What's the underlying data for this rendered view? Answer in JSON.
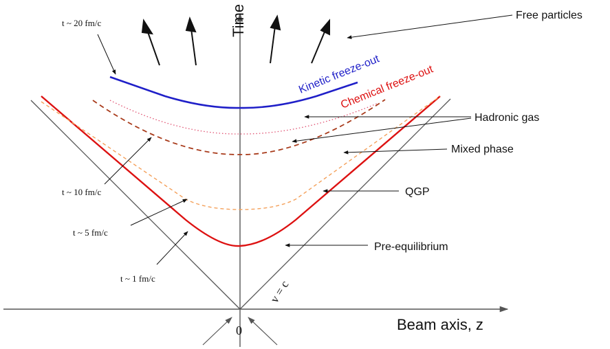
{
  "axes": {
    "time_label": "Time",
    "beam_label": "Beam axis, z",
    "origin_label": "0",
    "light_cone_label": "v = c"
  },
  "curves": {
    "kinetic_label": "Kinetic freeze-out",
    "chemical_label": "Chemical freeze-out"
  },
  "annotations": {
    "free_particles": "Free particles",
    "hadronic_gas": "Hadronic gas",
    "mixed_phase": "Mixed phase",
    "qgp": "QGP",
    "pre_equilibrium": "Pre-equilibrium"
  },
  "times": {
    "t20": "t ~ 20 fm/c",
    "t10": "t ~ 10 fm/c",
    "t5": "t ~ 5 fm/c",
    "t1": "t ~ 1 fm/c"
  },
  "colors": {
    "kinetic": "#1f1fc8",
    "chemical": "#dd1111",
    "dashed_brown": "#a83a1a",
    "dashed_orange": "#f4a05a",
    "dotted": "#e05070",
    "axis": "#444444"
  }
}
